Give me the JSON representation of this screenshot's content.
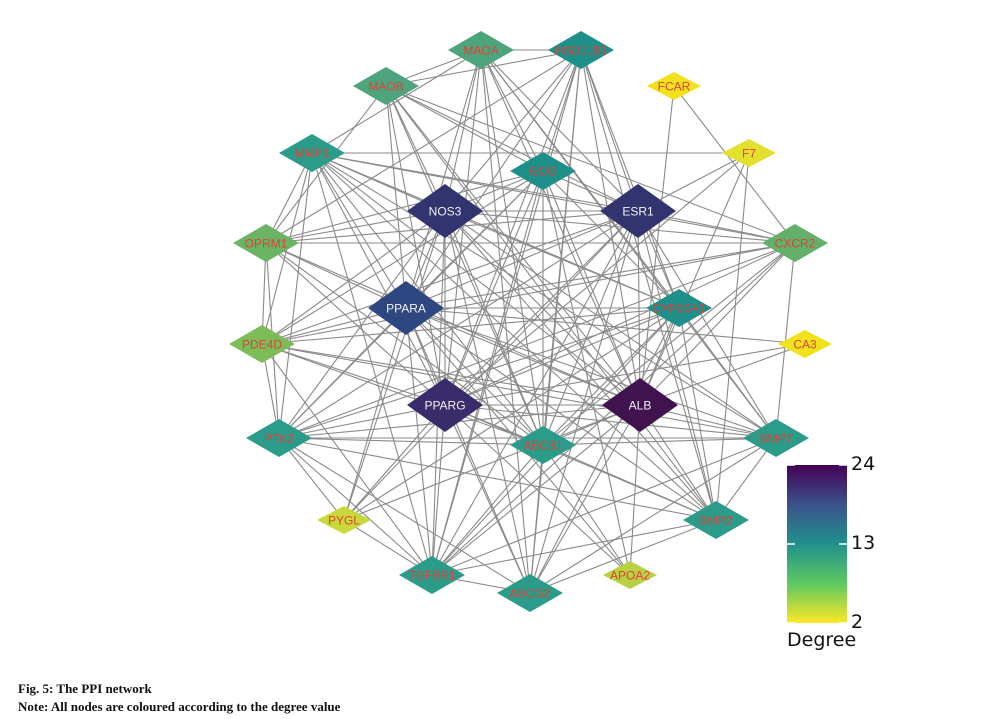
{
  "network": {
    "node_font_color": "#e0413a",
    "label_color_light": "#f2f2f2",
    "edge_color": "#8a8a8a",
    "nodes": [
      {
        "id": "MAOA",
        "label": "MAOA",
        "color": "#4ea47c"
      },
      {
        "id": "HSD11B1",
        "label": "HSD11B1",
        "color": "#1f8f8a"
      },
      {
        "id": "MAOB",
        "label": "MAOB",
        "color": "#4ea47c"
      },
      {
        "id": "FCAR",
        "label": "FCAR",
        "color": "#f1e21e"
      },
      {
        "id": "MMP1",
        "label": "MMP1",
        "color": "#2a9c89"
      },
      {
        "id": "GCG",
        "label": "GCG",
        "color": "#1f8f8a"
      },
      {
        "id": "F7",
        "label": "F7",
        "color": "#e3e12d"
      },
      {
        "id": "NOS3",
        "label": "NOS3",
        "color": "#31346e",
        "light": true
      },
      {
        "id": "ESR1",
        "label": "ESR1",
        "color": "#31346e",
        "light": true
      },
      {
        "id": "OPRM1",
        "label": "OPRM1",
        "color": "#6cb465"
      },
      {
        "id": "CXCR2",
        "label": "CXCR2",
        "color": "#62b06a"
      },
      {
        "id": "PPARA",
        "label": "PPARA",
        "color": "#2f4780",
        "light": true
      },
      {
        "id": "CYP19A1",
        "label": "CYP19A1",
        "color": "#1f8f8a"
      },
      {
        "id": "PDE4D",
        "label": "PDE4D",
        "color": "#7ebc59"
      },
      {
        "id": "CA3",
        "label": "CA3",
        "color": "#f1e21e"
      },
      {
        "id": "PPARG",
        "label": "PPARG",
        "color": "#3a2c6b",
        "light": true
      },
      {
        "id": "ALB",
        "label": "ALB",
        "color": "#40134f",
        "light": true
      },
      {
        "id": "PTK2",
        "label": "PTK2",
        "color": "#2a9c89"
      },
      {
        "id": "ABCB1",
        "label": "ABCB1",
        "color": "#2a9c89"
      },
      {
        "id": "BMP7",
        "label": "BMP7",
        "color": "#2a9c89"
      },
      {
        "id": "PYGL",
        "label": "PYGL",
        "color": "#c9d93a"
      },
      {
        "id": "BMP2",
        "label": "BMP2",
        "color": "#2a9c89"
      },
      {
        "id": "TGFBR1",
        "label": "TGFBR1",
        "color": "#2a9c89"
      },
      {
        "id": "APOA2",
        "label": "APOA2",
        "color": "#b9d043"
      },
      {
        "id": "ABCG2",
        "label": "ABCG2",
        "color": "#2a9c89"
      }
    ],
    "edges": [
      [
        "MAOA",
        "HSD11B1"
      ],
      [
        "MAOA",
        "MAOB"
      ],
      [
        "MAOA",
        "NOS3"
      ],
      [
        "MAOA",
        "ESR1"
      ],
      [
        "MAOA",
        "PPARA"
      ],
      [
        "MAOA",
        "PPARG"
      ],
      [
        "MAOA",
        "ALB"
      ],
      [
        "MAOA",
        "GCG"
      ],
      [
        "MAOA",
        "ABCB1"
      ],
      [
        "MAOA",
        "MMP1"
      ],
      [
        "MAOA",
        "CYP19A1"
      ],
      [
        "MAOA",
        "BMP7"
      ],
      [
        "MAOA",
        "ABCG2"
      ],
      [
        "HSD11B1",
        "NOS3"
      ],
      [
        "HSD11B1",
        "ESR1"
      ],
      [
        "HSD11B1",
        "PPARA"
      ],
      [
        "HSD11B1",
        "PPARG"
      ],
      [
        "HSD11B1",
        "ALB"
      ],
      [
        "HSD11B1",
        "GCG"
      ],
      [
        "HSD11B1",
        "CYP19A1"
      ],
      [
        "HSD11B1",
        "MAOB"
      ],
      [
        "HSD11B1",
        "ABCB1"
      ],
      [
        "HSD11B1",
        "OPRM1"
      ],
      [
        "HSD11B1",
        "TGFBR1"
      ],
      [
        "HSD11B1",
        "BMP2"
      ],
      [
        "HSD11B1",
        "ABCG2"
      ],
      [
        "MAOB",
        "NOS3"
      ],
      [
        "MAOB",
        "ESR1"
      ],
      [
        "MAOB",
        "PPARA"
      ],
      [
        "MAOB",
        "PPARG"
      ],
      [
        "MAOB",
        "ALB"
      ],
      [
        "MAOB",
        "ABCB1"
      ],
      [
        "MAOB",
        "GCG"
      ],
      [
        "MAOB",
        "BMP2"
      ],
      [
        "MAOB",
        "OPRM1"
      ],
      [
        "MAOB",
        "CXCR2"
      ],
      [
        "FCAR",
        "ALB"
      ],
      [
        "FCAR",
        "CXCR2"
      ],
      [
        "MMP1",
        "NOS3"
      ],
      [
        "MMP1",
        "ESR1"
      ],
      [
        "MMP1",
        "PPARA"
      ],
      [
        "MMP1",
        "PPARG"
      ],
      [
        "MMP1",
        "ALB"
      ],
      [
        "MMP1",
        "PTK2"
      ],
      [
        "MMP1",
        "TGFBR1"
      ],
      [
        "MMP1",
        "BMP2"
      ],
      [
        "MMP1",
        "CXCR2"
      ],
      [
        "MMP1",
        "BMP7"
      ],
      [
        "MMP1",
        "ABCB1"
      ],
      [
        "MMP1",
        "CYP19A1"
      ],
      [
        "MMP1",
        "OPRM1"
      ],
      [
        "MMP1",
        "PDE4D"
      ],
      [
        "GCG",
        "NOS3"
      ],
      [
        "GCG",
        "ESR1"
      ],
      [
        "GCG",
        "PPARA"
      ],
      [
        "GCG",
        "PPARG"
      ],
      [
        "GCG",
        "ALB"
      ],
      [
        "GCG",
        "PTK2"
      ],
      [
        "GCG",
        "ABCB1"
      ],
      [
        "GCG",
        "CYP19A1"
      ],
      [
        "GCG",
        "OPRM1"
      ],
      [
        "GCG",
        "PDE4D"
      ],
      [
        "GCG",
        "TGFBR1"
      ],
      [
        "GCG",
        "APOA2"
      ],
      [
        "F7",
        "ALB"
      ],
      [
        "F7",
        "ESR1"
      ],
      [
        "F7",
        "PPARG"
      ],
      [
        "F7",
        "BMP2"
      ],
      [
        "F7",
        "MMP1"
      ],
      [
        "NOS3",
        "ESR1"
      ],
      [
        "NOS3",
        "PPARA"
      ],
      [
        "NOS3",
        "PPARG"
      ],
      [
        "NOS3",
        "ALB"
      ],
      [
        "NOS3",
        "PTK2"
      ],
      [
        "NOS3",
        "ABCB1"
      ],
      [
        "NOS3",
        "BMP7"
      ],
      [
        "NOS3",
        "BMP2"
      ],
      [
        "NOS3",
        "CXCR2"
      ],
      [
        "NOS3",
        "CYP19A1"
      ],
      [
        "NOS3",
        "OPRM1"
      ],
      [
        "NOS3",
        "PDE4D"
      ],
      [
        "NOS3",
        "TGFBR1"
      ],
      [
        "NOS3",
        "ABCG2"
      ],
      [
        "NOS3",
        "PYGL"
      ],
      [
        "ESR1",
        "PPARA"
      ],
      [
        "ESR1",
        "PPARG"
      ],
      [
        "ESR1",
        "ALB"
      ],
      [
        "ESR1",
        "PTK2"
      ],
      [
        "ESR1",
        "ABCB1"
      ],
      [
        "ESR1",
        "BMP7"
      ],
      [
        "ESR1",
        "BMP2"
      ],
      [
        "ESR1",
        "CXCR2"
      ],
      [
        "ESR1",
        "CYP19A1"
      ],
      [
        "ESR1",
        "OPRM1"
      ],
      [
        "ESR1",
        "PDE4D"
      ],
      [
        "ESR1",
        "TGFBR1"
      ],
      [
        "ESR1",
        "ABCG2"
      ],
      [
        "ESR1",
        "PYGL"
      ],
      [
        "OPRM1",
        "PPARA"
      ],
      [
        "OPRM1",
        "PPARG"
      ],
      [
        "OPRM1",
        "ALB"
      ],
      [
        "OPRM1",
        "PTK2"
      ],
      [
        "OPRM1",
        "ABCB1"
      ],
      [
        "OPRM1",
        "CXCR2"
      ],
      [
        "OPRM1",
        "PDE4D"
      ],
      [
        "CXCR2",
        "PPARA"
      ],
      [
        "CXCR2",
        "PPARG"
      ],
      [
        "CXCR2",
        "ALB"
      ],
      [
        "CXCR2",
        "PTK2"
      ],
      [
        "CXCR2",
        "ABCB1"
      ],
      [
        "CXCR2",
        "PDE4D"
      ],
      [
        "CXCR2",
        "TGFBR1"
      ],
      [
        "CXCR2",
        "BMP7"
      ],
      [
        "PPARA",
        "PPARG"
      ],
      [
        "PPARA",
        "ALB"
      ],
      [
        "PPARA",
        "PTK2"
      ],
      [
        "PPARA",
        "ABCB1"
      ],
      [
        "PPARA",
        "BMP7"
      ],
      [
        "PPARA",
        "BMP2"
      ],
      [
        "PPARA",
        "CYP19A1"
      ],
      [
        "PPARA",
        "PDE4D"
      ],
      [
        "PPARA",
        "TGFBR1"
      ],
      [
        "PPARA",
        "ABCG2"
      ],
      [
        "PPARA",
        "APOA2"
      ],
      [
        "PPARA",
        "PYGL"
      ],
      [
        "PPARA",
        "CA3"
      ],
      [
        "CYP19A1",
        "PPARG"
      ],
      [
        "CYP19A1",
        "ALB"
      ],
      [
        "CYP19A1",
        "ABCB1"
      ],
      [
        "CYP19A1",
        "BMP7"
      ],
      [
        "CYP19A1",
        "BMP2"
      ],
      [
        "CYP19A1",
        "TGFBR1"
      ],
      [
        "CYP19A1",
        "ABCG2"
      ],
      [
        "CYP19A1",
        "PTK2"
      ],
      [
        "CYP19A1",
        "PDE4D"
      ],
      [
        "CYP19A1",
        "PYGL"
      ],
      [
        "PDE4D",
        "PPARG"
      ],
      [
        "PDE4D",
        "ALB"
      ],
      [
        "PDE4D",
        "PTK2"
      ],
      [
        "PDE4D",
        "ABCB1"
      ],
      [
        "PDE4D",
        "TGFBR1"
      ],
      [
        "PDE4D",
        "BMP7"
      ],
      [
        "CA3",
        "ALB"
      ],
      [
        "CA3",
        "PPARG"
      ],
      [
        "PPARG",
        "ALB"
      ],
      [
        "PPARG",
        "PTK2"
      ],
      [
        "PPARG",
        "ABCB1"
      ],
      [
        "PPARG",
        "BMP7"
      ],
      [
        "PPARG",
        "BMP2"
      ],
      [
        "PPARG",
        "TGFBR1"
      ],
      [
        "PPARG",
        "ABCG2"
      ],
      [
        "PPARG",
        "APOA2"
      ],
      [
        "PPARG",
        "PYGL"
      ],
      [
        "ALB",
        "PTK2"
      ],
      [
        "ALB",
        "ABCB1"
      ],
      [
        "ALB",
        "BMP7"
      ],
      [
        "ALB",
        "BMP2"
      ],
      [
        "ALB",
        "TGFBR1"
      ],
      [
        "ALB",
        "ABCG2"
      ],
      [
        "ALB",
        "APOA2"
      ],
      [
        "ALB",
        "PYGL"
      ],
      [
        "PTK2",
        "ABCB1"
      ],
      [
        "PTK2",
        "TGFBR1"
      ],
      [
        "PTK2",
        "BMP2"
      ],
      [
        "PTK2",
        "ABCG2"
      ],
      [
        "PTK2",
        "BMP7"
      ],
      [
        "PTK2",
        "PYGL"
      ],
      [
        "ABCB1",
        "BMP7"
      ],
      [
        "ABCB1",
        "BMP2"
      ],
      [
        "ABCB1",
        "TGFBR1"
      ],
      [
        "ABCB1",
        "ABCG2"
      ],
      [
        "ABCB1",
        "APOA2"
      ],
      [
        "BMP7",
        "BMP2"
      ],
      [
        "BMP7",
        "TGFBR1"
      ],
      [
        "BMP7",
        "ABCG2"
      ],
      [
        "BMP2",
        "TGFBR1"
      ],
      [
        "BMP2",
        "ABCG2"
      ],
      [
        "TGFBR1",
        "ABCG2"
      ],
      [
        "PYGL",
        "TGFBR1"
      ]
    ]
  },
  "legend": {
    "title": "Degree",
    "ticks": [
      {
        "label": "24",
        "value": 24
      },
      {
        "label": "13",
        "value": 13
      },
      {
        "label": "2",
        "value": 2
      }
    ],
    "range": [
      2,
      24
    ],
    "gradient_colors": [
      "#440154",
      "#3b528b",
      "#21918c",
      "#5ec962",
      "#fde725"
    ]
  },
  "caption": {
    "line1": "Fig. 5: The PPI network",
    "line2": "Note: All nodes are coloured according to the degree value"
  }
}
